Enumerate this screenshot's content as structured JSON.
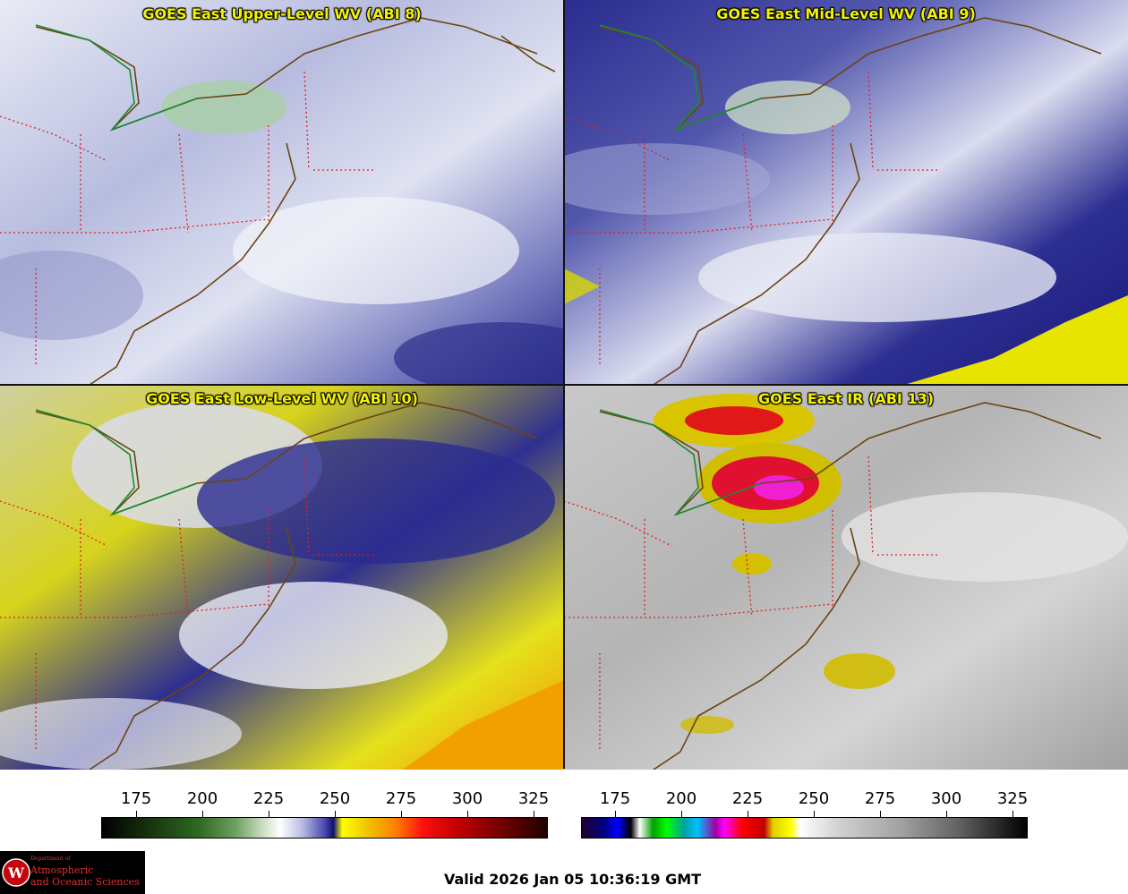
{
  "panels": [
    {
      "title": "GOES East Upper-Level WV (ABI 8)",
      "bg": "#b9bedf",
      "band": "#3a3c96",
      "band2": "#eef0f8",
      "accent": "#9cc69a"
    },
    {
      "title": "GOES East Mid-Level WV (ABI 9)",
      "bg": "#3c40a0",
      "band": "#1a1a80",
      "band2": "#e6e8f4",
      "accent": "#f0f000"
    },
    {
      "title": "GOES East Low-Level WV (ABI 10)",
      "bg": "#3a3a9a",
      "band": "#e3de1a",
      "band2": "#e8e9f4",
      "accent": "#f29a00"
    },
    {
      "title": "GOES East IR (ABI 13)",
      "bg": "#b8b8b8",
      "band": "#d6d6d6",
      "band2": "#8c8c8c",
      "accent": "#e0c800"
    }
  ],
  "colorbars": [
    {
      "ticks": [
        "175",
        "200",
        "225",
        "250",
        "275",
        "300",
        "325"
      ]
    },
    {
      "ticks": [
        "175",
        "200",
        "225",
        "250",
        "275",
        "300",
        "325"
      ]
    }
  ],
  "logo": {
    "line1": "Department of",
    "line2": "Atmospheric",
    "line3": "and Oceanic Sciences",
    "icon": "uw-crest-icon"
  },
  "valid_text": "Valid 2026 Jan 05 10:36:19 GMT"
}
